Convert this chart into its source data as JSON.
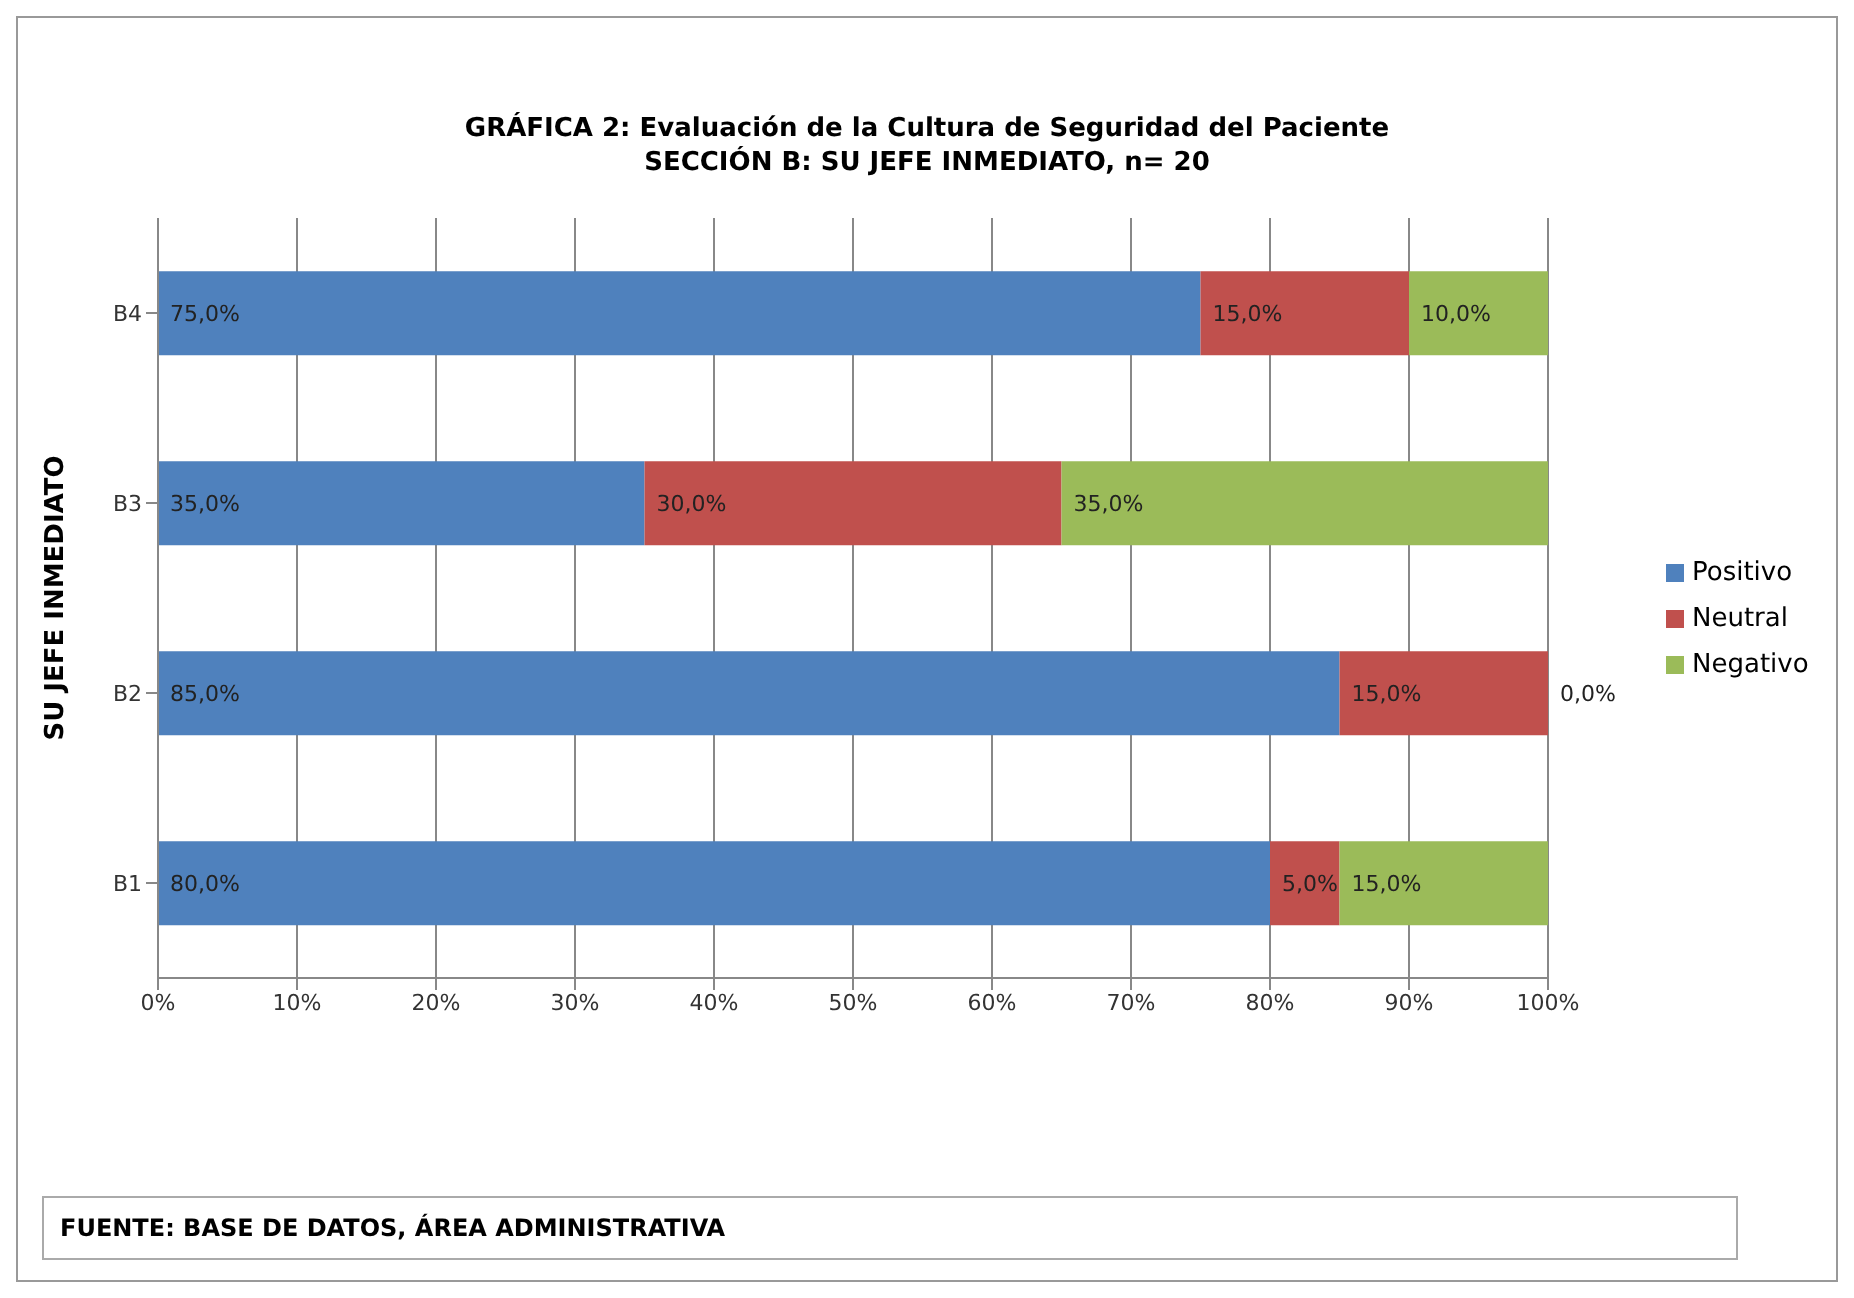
{
  "chart_data": {
    "type": "bar",
    "orientation": "horizontal",
    "stacked": true,
    "title": "GRÁFICA 2:  Evaluación de la Cultura de Seguridad del Paciente",
    "subtitle": "SECCIÓN B: SU JEFE INMEDIATO,  n= 20",
    "ylabel": "SU JEFE INMEDIATO",
    "categories": [
      "B4",
      "B3",
      "B2",
      "B1"
    ],
    "series": [
      {
        "name": "Positivo",
        "color": "#4f81bd",
        "values": [
          75,
          35,
          85,
          80
        ],
        "value_labels": [
          "75,0%",
          "35,0%",
          "85,0%",
          "80,0%"
        ]
      },
      {
        "name": "Neutral",
        "color": "#c0504d",
        "values": [
          15,
          30,
          15,
          5
        ],
        "value_labels": [
          "15,0%",
          "30,0%",
          "15,0%",
          "5,0%"
        ]
      },
      {
        "name": "Negativo",
        "color": "#9bbb59",
        "values": [
          10,
          35,
          0,
          15
        ],
        "value_labels": [
          "10,0%",
          "35,0%",
          "0,0%",
          "15,0%"
        ]
      }
    ],
    "xlim": [
      0,
      100
    ],
    "xticks": [
      {
        "value": 0,
        "label": "0%"
      },
      {
        "value": 10,
        "label": "10%"
      },
      {
        "value": 20,
        "label": "20%"
      },
      {
        "value": 30,
        "label": "30%"
      },
      {
        "value": 40,
        "label": "40%"
      },
      {
        "value": 50,
        "label": "50%"
      },
      {
        "value": 60,
        "label": "60%"
      },
      {
        "value": 70,
        "label": "70%"
      },
      {
        "value": 80,
        "label": "80%"
      },
      {
        "value": 90,
        "label": "90%"
      },
      {
        "value": 100,
        "label": "100%"
      }
    ],
    "grid": "x",
    "legend": "right",
    "annotations": [
      "FUENTE:  BASE DE DATOS, ÁREA ADMINISTRATIVA"
    ]
  }
}
